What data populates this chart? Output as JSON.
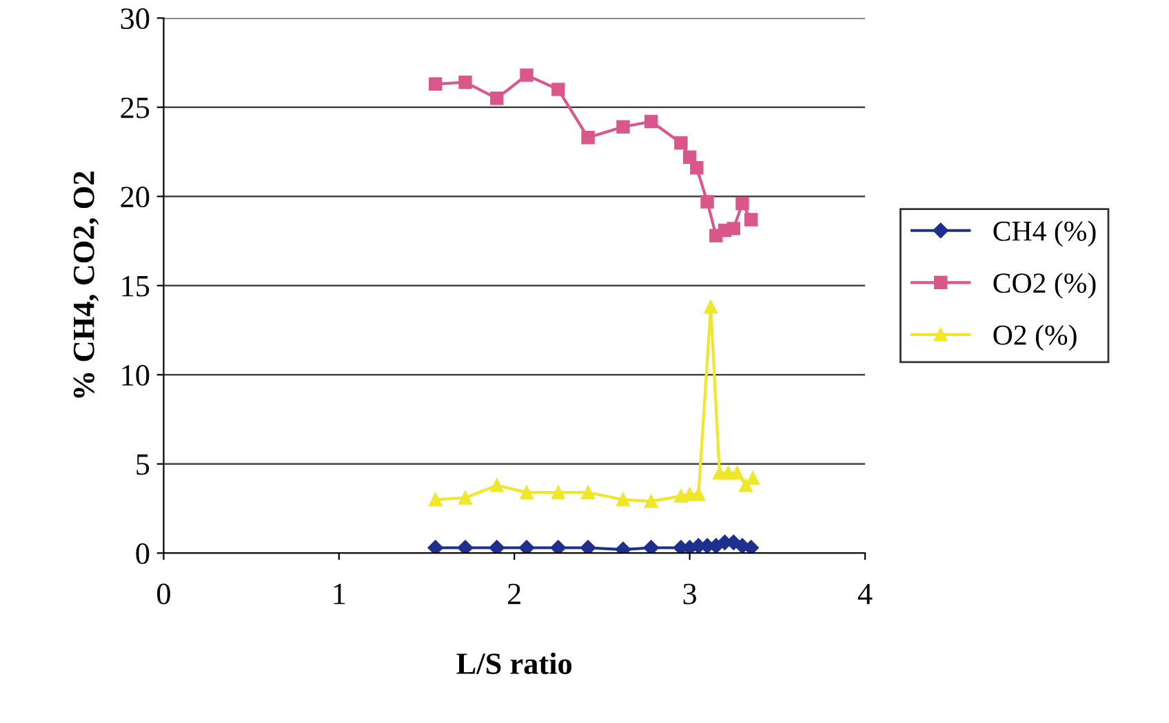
{
  "chart_data": {
    "type": "line",
    "xlabel": "L/S ratio",
    "ylabel": "% CH4, CO2, O2",
    "xlim": [
      0,
      4
    ],
    "xticks": [
      0,
      1,
      2,
      3,
      4
    ],
    "ylim": [
      0,
      30
    ],
    "yticks": [
      0,
      5,
      10,
      15,
      20,
      25,
      30
    ],
    "grid": "y",
    "legend": "right",
    "series": [
      {
        "name": "CH4 (%)",
        "color": "#1f2f8c",
        "marker": "diamond",
        "x": [
          1.55,
          1.72,
          1.9,
          2.07,
          2.25,
          2.42,
          2.62,
          2.78,
          2.95,
          3.0,
          3.05,
          3.1,
          3.15,
          3.2,
          3.25,
          3.3,
          3.35
        ],
        "values": [
          0.3,
          0.3,
          0.3,
          0.3,
          0.3,
          0.3,
          0.2,
          0.3,
          0.3,
          0.3,
          0.4,
          0.4,
          0.4,
          0.6,
          0.6,
          0.4,
          0.3
        ]
      },
      {
        "name": "CO2 (%)",
        "color": "#d9578a",
        "marker": "square",
        "x": [
          1.55,
          1.72,
          1.9,
          2.07,
          2.25,
          2.42,
          2.62,
          2.78,
          2.95,
          3.0,
          3.04,
          3.1,
          3.15,
          3.2,
          3.25,
          3.3,
          3.35
        ],
        "values": [
          26.3,
          26.4,
          25.5,
          26.8,
          26.0,
          23.3,
          23.9,
          24.2,
          23.0,
          22.2,
          21.6,
          19.7,
          17.8,
          18.1,
          18.2,
          19.6,
          18.7
        ]
      },
      {
        "name": "O2 (%)",
        "color": "#f0e62a",
        "marker": "triangle",
        "x": [
          1.55,
          1.72,
          1.9,
          2.07,
          2.25,
          2.42,
          2.62,
          2.78,
          2.95,
          3.0,
          3.05,
          3.12,
          3.17,
          3.22,
          3.27,
          3.32,
          3.36
        ],
        "values": [
          3.0,
          3.1,
          3.8,
          3.4,
          3.4,
          3.4,
          3.0,
          2.9,
          3.2,
          3.3,
          3.3,
          13.8,
          4.5,
          4.5,
          4.5,
          3.8,
          4.2
        ]
      }
    ]
  }
}
